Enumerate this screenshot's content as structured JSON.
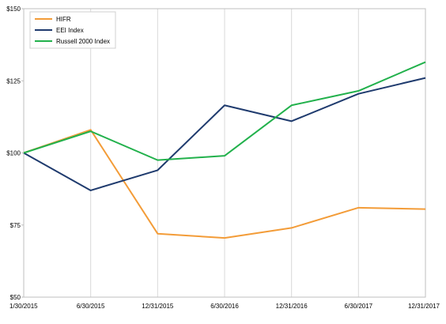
{
  "chart_data": {
    "type": "line",
    "title": "",
    "xlabel": "",
    "ylabel": "",
    "categories": [
      "1/30/2015",
      "6/30/2015",
      "12/31/2015",
      "6/30/2016",
      "12/31/2016",
      "6/30/2017",
      "12/31/2017"
    ],
    "y_ticks": [
      {
        "value": 50,
        "label": "$50"
      },
      {
        "value": 75,
        "label": "$75"
      },
      {
        "value": 100,
        "label": "$100"
      },
      {
        "value": 125,
        "label": "$125"
      },
      {
        "value": 150,
        "label": "$150"
      }
    ],
    "ylim": [
      50,
      150
    ],
    "grid": "vertical",
    "legend_position": "top-left",
    "series": [
      {
        "name": "HIFR",
        "color": "#F39C38",
        "values": [
          100,
          108,
          72,
          70.5,
          74,
          81,
          80.5
        ]
      },
      {
        "name": "EEI Index",
        "color": "#1F3B6E",
        "values": [
          100,
          87,
          94,
          116.5,
          111,
          120.5,
          126
        ]
      },
      {
        "name": "Russell 2000 Index",
        "color": "#22B14C",
        "values": [
          100,
          107.5,
          97.5,
          99,
          116.5,
          121.5,
          131.5
        ]
      }
    ]
  }
}
